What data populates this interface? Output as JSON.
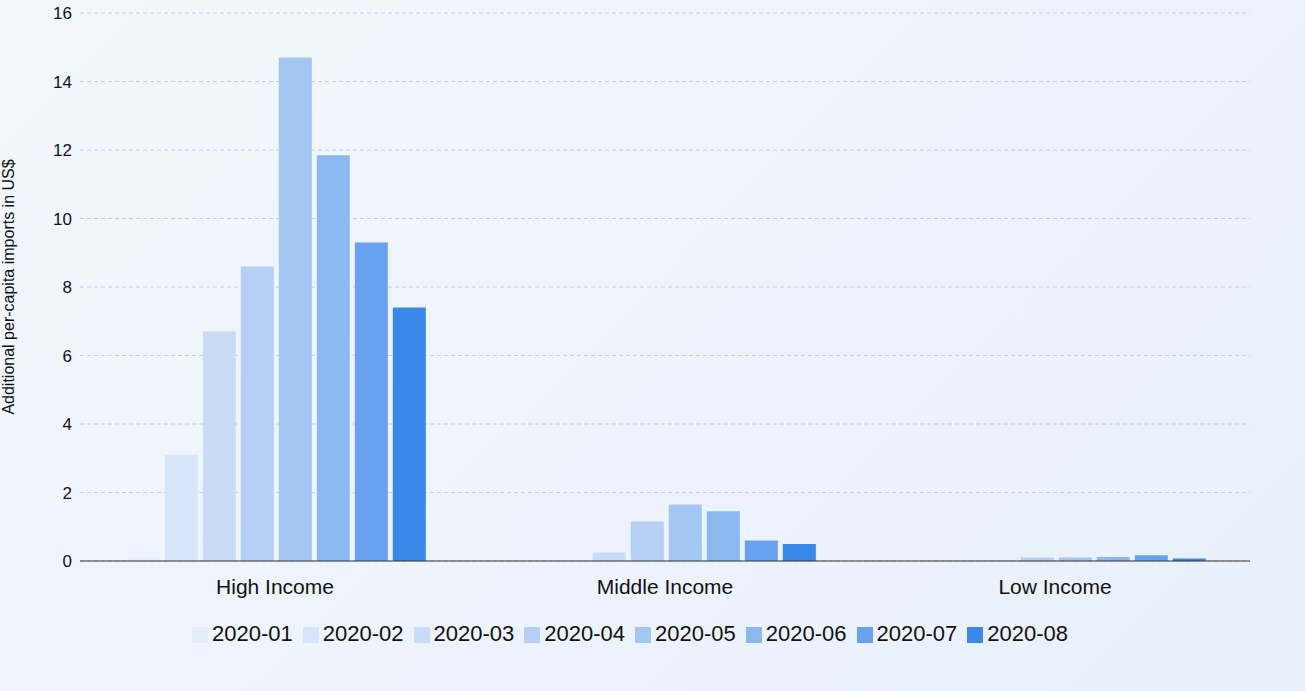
{
  "chart_data": {
    "type": "bar",
    "y_label": "Additional per-capita imports in US$",
    "categories": [
      "High Income",
      "Middle Income",
      "Low Income"
    ],
    "series": [
      {
        "name": "2020-01",
        "color": "#e4eefa",
        "values": [
          0.1,
          0.0,
          0.0
        ]
      },
      {
        "name": "2020-02",
        "color": "#d6e5f9",
        "values": [
          3.1,
          0.02,
          0.01
        ]
      },
      {
        "name": "2020-03",
        "color": "#c8dcf7",
        "values": [
          6.7,
          0.25,
          0.02
        ]
      },
      {
        "name": "2020-04",
        "color": "#b6d0f5",
        "values": [
          8.6,
          1.15,
          0.1
        ]
      },
      {
        "name": "2020-05",
        "color": "#a3c6f3",
        "values": [
          14.7,
          1.65,
          0.1
        ]
      },
      {
        "name": "2020-06",
        "color": "#8cb8f0",
        "values": [
          11.85,
          1.45,
          0.12
        ]
      },
      {
        "name": "2020-07",
        "color": "#68a2ee",
        "values": [
          9.3,
          0.6,
          0.17
        ]
      },
      {
        "name": "2020-08",
        "color": "#3a88e8",
        "values": [
          7.4,
          0.5,
          0.07
        ]
      }
    ],
    "ylim": [
      0,
      16
    ],
    "yticks": [
      0,
      2,
      4,
      6,
      8,
      10,
      12,
      14,
      16
    ],
    "grid": true,
    "legend": "bottom"
  }
}
